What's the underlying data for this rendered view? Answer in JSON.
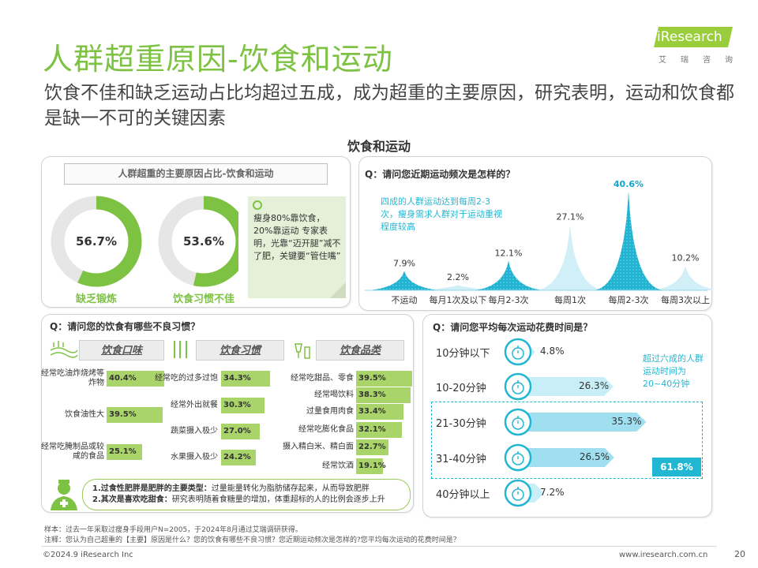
{
  "header": {
    "title": "人群超重原因-饮食和运动",
    "subtitle": "饮食不佳和缺乏运动占比均超过五成，成为超重的主要原因，研究表明，运动和饮食都是缺一不可的关键因素",
    "section_title": "饮食和运动"
  },
  "logo": {
    "text": "iResearch",
    "cn": [
      "艾",
      "瑞",
      "咨",
      "询"
    ]
  },
  "colors": {
    "green": "#7dc242",
    "light_green": "#a9d46a",
    "blue": "#21b7d3",
    "light_blue": "#cdeef6",
    "dark_blue": "#0fa7cd"
  },
  "reasons": {
    "panel_title": "人群超重的主要原因占比-饮食和运动",
    "rings": [
      {
        "label": "缺乏锻炼",
        "value_text": "56.7%",
        "value": 56.7
      },
      {
        "label": "饮食习惯不佳",
        "value_text": "53.6%",
        "value": 53.6
      }
    ],
    "note": "瘦身80%靠饮食，20%靠运动 专家表明，光靠“迈开腿”减不了肥，关键要“管住嘴”",
    "note_icon": "circle-icon"
  },
  "frequency": {
    "question": "Q：请问您近期运动频次是怎样的？",
    "annotation": "四成的人群运动达到每周2-3次，瘦身需求人群对于运动重视程度较高"
  },
  "habits": {
    "question": "Q：请问您的饮食有哪些不良习惯？",
    "groups": [
      {
        "title": "饮食口味",
        "icon": "grill-icon",
        "items": [
          {
            "label": "经常吃油炸烧烤等炸物",
            "value_text": "40.4%",
            "value": 40.4
          },
          {
            "label": "饮食油性大",
            "value_text": "39.5%",
            "value": 39.5
          },
          {
            "label": "经常吃腌制品或较咸的食品",
            "value_text": "25.1%",
            "value": 25.1
          }
        ]
      },
      {
        "title": "饮食习惯",
        "icon": "cutlery-icon",
        "items": [
          {
            "label": "经常吃的过多过饱",
            "value_text": "34.3%",
            "value": 34.3
          },
          {
            "label": "经常外出就餐",
            "value_text": "30.3%",
            "value": 30.3
          },
          {
            "label": "蔬菜摄入极少",
            "value_text": "27.0%",
            "value": 27.0
          },
          {
            "label": "水果摄入极少",
            "value_text": "24.2%",
            "value": 24.2
          }
        ]
      },
      {
        "title": "饮食品类",
        "icon": "drinks-icon",
        "items": [
          {
            "label": "经常吃甜品、零食",
            "value_text": "39.5%",
            "value": 39.5
          },
          {
            "label": "经常喝饮料",
            "value_text": "38.3%",
            "value": 38.3
          },
          {
            "label": "过量食用肉食",
            "value_text": "33.4%",
            "value": 33.4
          },
          {
            "label": "经常吃膨化食品",
            "value_text": "32.1%",
            "value": 32.1
          },
          {
            "label": "摄入精白米、精白面",
            "value_text": "22.7%",
            "value": 22.7
          },
          {
            "label": "经常饮酒",
            "value_text": "19.1%",
            "value": 19.1
          }
        ]
      }
    ],
    "doctor_icon": "doctor-icon",
    "tips": [
      {
        "bold": "1.过食性肥胖是肥胖的主要类型：",
        "text": "过量能量转化为脂肪储存起来，从而导致肥胖"
      },
      {
        "bold": "2.其次是喜欢吃甜食：",
        "text": "研究表明随着食糖量的增加，体重超标的人的比例会逐步上升"
      }
    ]
  },
  "spending": {
    "question": "Q：请问您平均每次运动花费时间是？",
    "annotation": "超过六成的人群运动时间为20~40分钟",
    "combined_text": "61.8%",
    "combined_value": 61.8,
    "timer_icon": "stopwatch-icon"
  },
  "chart_data": [
    {
      "type": "area",
      "title": "Q：请问您近期运动频次是怎样的？",
      "categories": [
        "不运动",
        "每月1次及以下",
        "每月2-3次",
        "每周1次",
        "每周2-3次",
        "每周3次以上"
      ],
      "values": [
        7.9,
        2.2,
        12.1,
        27.1,
        40.6,
        10.2
      ],
      "value_labels": [
        "7.9%",
        "2.2%",
        "12.1%",
        "27.1%",
        "40.6%",
        "10.2%"
      ],
      "highlight": [
        true,
        false,
        true,
        false,
        true,
        false
      ],
      "grid": false
    },
    {
      "type": "bar",
      "title": "Q：请问您平均每次运动花费时间是？",
      "orientation": "horizontal",
      "categories": [
        "10分钟以下",
        "10-20分钟",
        "21-30分钟",
        "31-40分钟",
        "40分钟以上"
      ],
      "values": [
        4.8,
        26.3,
        35.3,
        26.5,
        7.2
      ],
      "value_labels": [
        "4.8%",
        "26.3%",
        "35.3%",
        "26.5%",
        "7.2%"
      ],
      "highlight": [
        false,
        false,
        true,
        true,
        false
      ],
      "grid": false
    }
  ],
  "footer": {
    "sample": "样本：过去一年采取过瘦身手段用户N=2005，于2024年8月通过艾瑞调研获得。",
    "notes": "注释：您认为自己超重的【主要】原因是什么？您的饮食有哪些不良习惯？您近期运动频次是怎样的?您平均每次运动的花费时间是？",
    "copyright": "©2024.9 iResearch Inc",
    "website": "www.iresearch.com.cn",
    "page": "20"
  }
}
